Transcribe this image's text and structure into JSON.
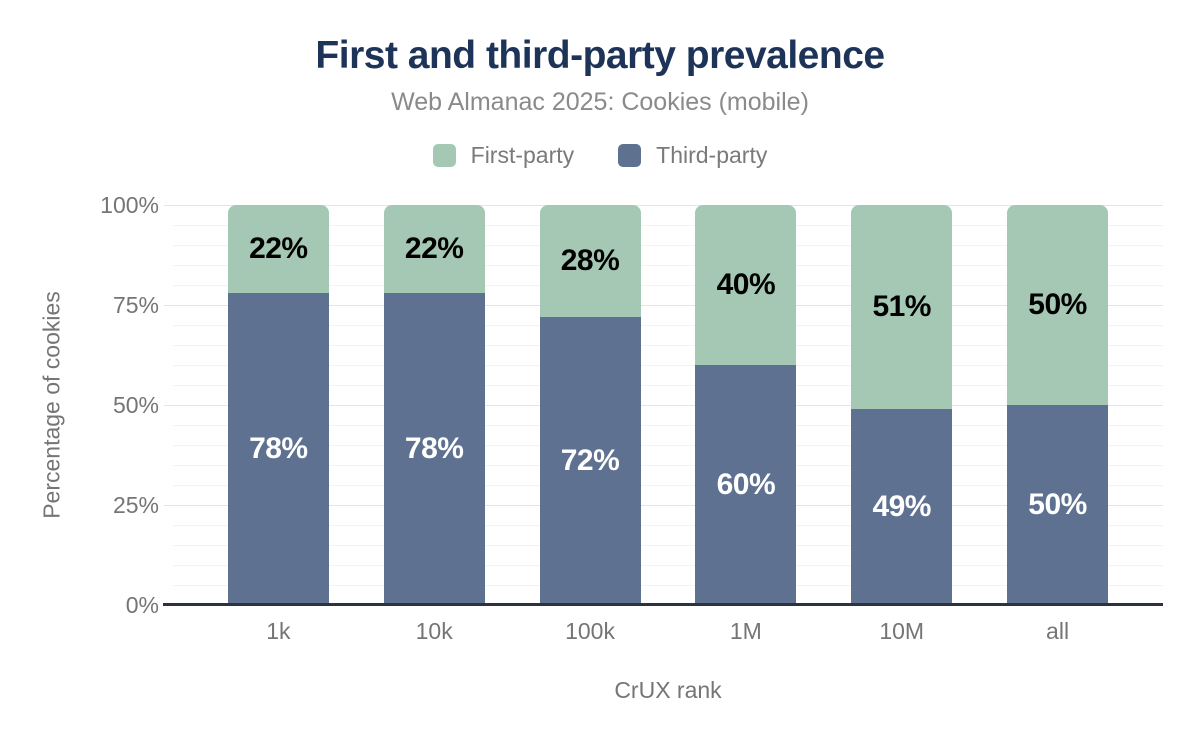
{
  "title": "First and third-party prevalence",
  "subtitle": "Web Almanac 2025: Cookies (mobile)",
  "legend": [
    {
      "label": "First-party",
      "color": "#a5c8b4"
    },
    {
      "label": "Third-party",
      "color": "#5e7190"
    }
  ],
  "chart_data": {
    "type": "bar",
    "stacked": true,
    "title": "First and third-party prevalence",
    "subtitle": "Web Almanac 2025: Cookies (mobile)",
    "categories": [
      "1k",
      "10k",
      "100k",
      "1M",
      "10M",
      "all"
    ],
    "series": [
      {
        "name": "First-party",
        "color": "#a5c8b4",
        "label_color": "#000000",
        "values": [
          22,
          22,
          28,
          40,
          51,
          50
        ]
      },
      {
        "name": "Third-party",
        "color": "#5e7190",
        "label_color": "#ffffff",
        "values": [
          78,
          78,
          72,
          60,
          49,
          50
        ]
      }
    ],
    "value_suffix": "%",
    "xlabel": "CrUX rank",
    "ylabel": "Percentage of cookies",
    "ylim": [
      0,
      100
    ],
    "yticks": [
      {
        "label": "0%",
        "value": 0
      },
      {
        "label": "25%",
        "value": 25
      },
      {
        "label": "50%",
        "value": 50
      },
      {
        "label": "75%",
        "value": 75
      },
      {
        "label": "100%",
        "value": 100
      }
    ],
    "grid": "horizontal, minor every 5%, major every 25%",
    "legend_position": "top"
  },
  "colors": {
    "title": "#1d3357",
    "subtitle_text": "#8a8a8a",
    "axis_text": "#757575",
    "axis_line": "#2d3240",
    "grid_minor": "#f3f3f3",
    "grid_major": "#e4e4e4",
    "background": "#ffffff"
  }
}
